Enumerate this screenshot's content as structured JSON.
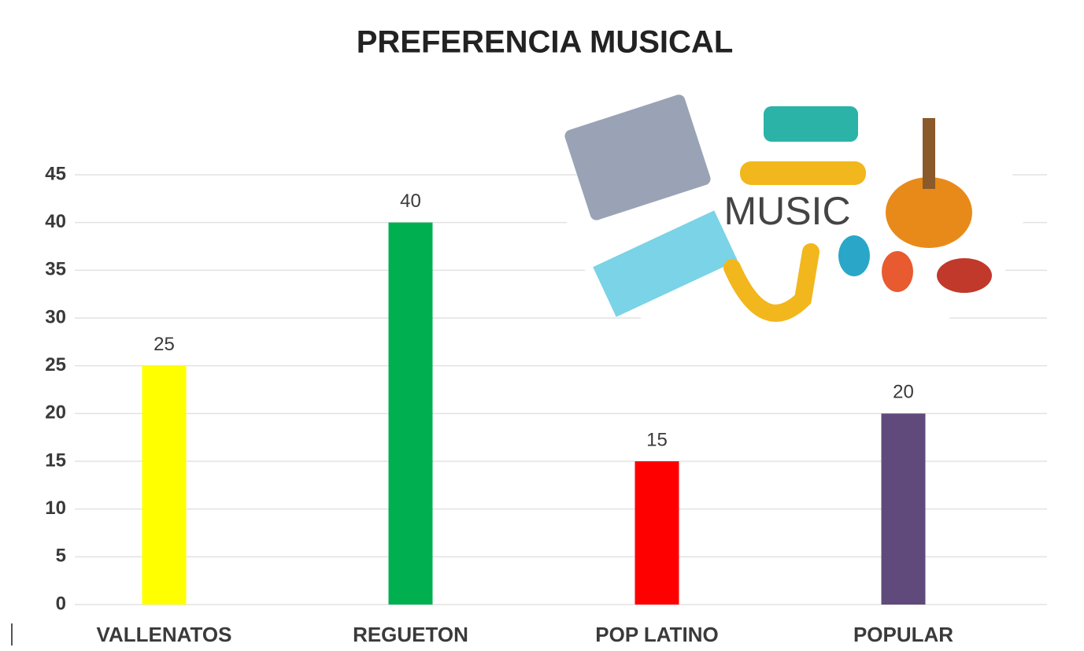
{
  "chart_data": {
    "type": "bar",
    "title": "PREFERENCIA MUSICAL",
    "categories": [
      "VALLENATOS",
      "REGUETON",
      "POP LATINO",
      "POPULAR"
    ],
    "values": [
      25,
      40,
      15,
      20
    ],
    "colors": [
      "#ffff00",
      "#00b050",
      "#ff0000",
      "#604a7b"
    ],
    "ylim": [
      0,
      45
    ],
    "yticks": [
      0,
      5,
      10,
      15,
      20,
      25,
      30,
      35,
      40,
      45
    ],
    "grid": true,
    "illustration_text": "MUSIC"
  }
}
